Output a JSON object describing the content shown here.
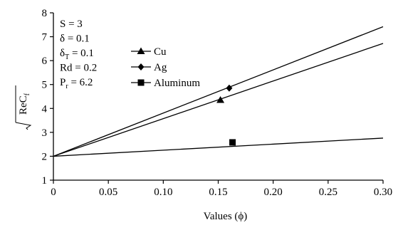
{
  "chart_data": {
    "type": "line",
    "xlabel": "Values (ϕ)",
    "ylabel": "ReC",
    "ylabel_subscript": "f",
    "xlim": [
      0,
      0.3
    ],
    "ylim": [
      1,
      8
    ],
    "x_ticks": [
      0,
      0.05,
      0.1,
      0.15,
      0.2,
      0.25,
      0.3
    ],
    "x_tick_labels": [
      "0",
      "0.05",
      "0.10",
      "0.15",
      "0.20",
      "0.25",
      "0.30"
    ],
    "y_ticks": [
      1,
      2,
      3,
      4,
      5,
      6,
      7,
      8
    ],
    "y_tick_labels": [
      "1",
      "2",
      "3",
      "4",
      "5",
      "6",
      "7",
      "8"
    ],
    "grid": false,
    "legend_position": "top-center",
    "parameters": [
      {
        "sym": "S",
        "sub": "",
        "value": " = 3"
      },
      {
        "sym": "δ",
        "sub": "",
        "value": " = 0.1"
      },
      {
        "sym": "δ",
        "sub": "T",
        "value": " = 0.1"
      },
      {
        "sym": "Rd",
        "sub": "",
        "value": " = 0.2"
      },
      {
        "sym": "P",
        "sub": "r",
        "value": " = 6.2"
      }
    ],
    "series": [
      {
        "name": "Cu",
        "marker": "triangle",
        "x": [
          0,
          0.3
        ],
        "y": [
          2.0,
          6.72
        ],
        "marker_x": 0.152,
        "marker_y": 4.35
      },
      {
        "name": "Ag",
        "marker": "diamond",
        "x": [
          0,
          0.3
        ],
        "y": [
          2.0,
          7.42
        ],
        "marker_x": 0.16,
        "marker_y": 4.85
      },
      {
        "name": "Aluminum",
        "marker": "square",
        "x": [
          0,
          0.3
        ],
        "y": [
          2.0,
          2.76
        ],
        "marker_x": 0.163,
        "marker_y": 2.58
      }
    ]
  }
}
